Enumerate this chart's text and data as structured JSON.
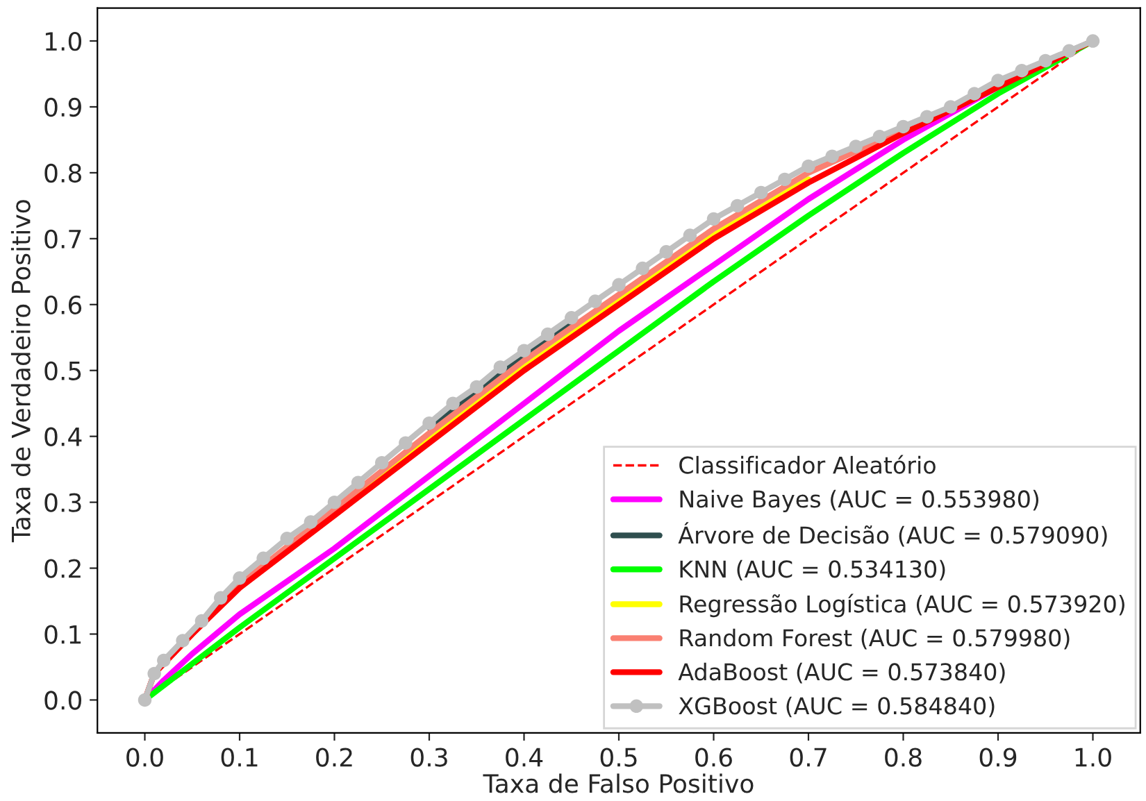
{
  "chart_data": {
    "type": "line",
    "xlabel": "Taxa de Falso Positivo",
    "ylabel": "Taxa de Verdadeiro Positivo",
    "xlim": [
      -0.05,
      1.05
    ],
    "ylim": [
      -0.05,
      1.05
    ],
    "xticks": [
      {
        "value": 0,
        "label": "0.0"
      },
      0.1,
      0.2,
      0.3,
      0.4,
      0.5,
      0.6,
      0.7,
      0.8,
      0.9,
      {
        "value": 1,
        "label": "1.0"
      }
    ],
    "yticks": [
      {
        "value": 0,
        "label": "0.0"
      },
      0.1,
      0.2,
      0.3,
      0.4,
      0.5,
      0.6,
      0.7,
      0.8,
      0.9,
      {
        "value": 1,
        "label": "1.0"
      }
    ],
    "grid": false,
    "legend": "bottom right",
    "series": [
      {
        "name": "Classificador Aleatório",
        "color": "#ff0000",
        "line_style": "dashed",
        "marker": "none",
        "x": [
          0,
          1
        ],
        "values": [
          0,
          1
        ]
      },
      {
        "name": "Naive Bayes (AUC = 0.553980)",
        "color": "#ff00ff",
        "line_style": "solid",
        "marker": "none",
        "x": [
          0,
          0.02,
          0.05,
          0.1,
          0.2,
          0.3,
          0.4,
          0.5,
          0.6,
          0.7,
          0.8,
          0.9,
          1
        ],
        "values": [
          0,
          0.03,
          0.07,
          0.13,
          0.23,
          0.34,
          0.45,
          0.56,
          0.66,
          0.76,
          0.85,
          0.93,
          1
        ]
      },
      {
        "name": "Árvore de Decisão (AUC = 0.579090)",
        "color": "#2f4f4f",
        "line_style": "solid",
        "marker": "none",
        "x": [
          0.3,
          0.35,
          0.4,
          0.45
        ],
        "values": [
          0.413,
          0.468,
          0.523,
          0.573
        ]
      },
      {
        "name": "KNN (AUC = 0.534130)",
        "color": "#00ff00",
        "line_style": "solid",
        "marker": "none",
        "x": [
          0,
          0.1,
          0.2,
          0.3,
          0.4,
          0.5,
          0.6,
          0.7,
          0.8,
          0.9,
          1
        ],
        "values": [
          0,
          0.11,
          0.215,
          0.32,
          0.425,
          0.53,
          0.635,
          0.735,
          0.83,
          0.92,
          1
        ]
      },
      {
        "name": "Regressão Logística (AUC = 0.573920)",
        "color": "#ffff00",
        "line_style": "solid",
        "marker": "none",
        "x": [
          0.2,
          0.3,
          0.4,
          0.5,
          0.6,
          0.7
        ],
        "values": [
          0.285,
          0.395,
          0.505,
          0.605,
          0.705,
          0.79
        ]
      },
      {
        "name": "Random Forest (AUC = 0.579980)",
        "color": "#fa8072",
        "line_style": "solid",
        "marker": "none",
        "x": [
          0,
          0.01,
          0.05,
          0.1,
          0.2,
          0.3,
          0.4,
          0.5,
          0.6,
          0.7,
          0.8,
          0.9,
          1
        ],
        "values": [
          0,
          0.04,
          0.1,
          0.175,
          0.29,
          0.405,
          0.515,
          0.615,
          0.715,
          0.8,
          0.865,
          0.935,
          1
        ]
      },
      {
        "name": "AdaBoost (AUC = 0.573840)",
        "color": "#ff0000",
        "line_style": "solid",
        "marker": "none",
        "x": [
          0,
          0.01,
          0.05,
          0.1,
          0.2,
          0.3,
          0.4,
          0.5,
          0.6,
          0.7,
          0.8,
          0.9,
          1
        ],
        "values": [
          0,
          0.04,
          0.1,
          0.17,
          0.28,
          0.39,
          0.5,
          0.6,
          0.7,
          0.785,
          0.86,
          0.93,
          1
        ]
      },
      {
        "name": "XGBoost (AUC = 0.584840)",
        "color": "#c0c0c0",
        "line_style": "solid",
        "marker": "circle",
        "x": [
          0,
          0.01,
          0.02,
          0.04,
          0.06,
          0.08,
          0.1,
          0.125,
          0.15,
          0.175,
          0.2,
          0.225,
          0.25,
          0.275,
          0.3,
          0.325,
          0.35,
          0.375,
          0.4,
          0.425,
          0.45,
          0.475,
          0.5,
          0.525,
          0.55,
          0.575,
          0.6,
          0.625,
          0.65,
          0.675,
          0.7,
          0.725,
          0.75,
          0.775,
          0.8,
          0.825,
          0.85,
          0.875,
          0.9,
          0.925,
          0.95,
          0.975,
          1
        ],
        "values": [
          0,
          0.04,
          0.06,
          0.09,
          0.12,
          0.155,
          0.185,
          0.215,
          0.245,
          0.27,
          0.3,
          0.33,
          0.36,
          0.39,
          0.42,
          0.45,
          0.475,
          0.505,
          0.53,
          0.555,
          0.58,
          0.605,
          0.63,
          0.655,
          0.68,
          0.705,
          0.73,
          0.75,
          0.77,
          0.79,
          0.81,
          0.825,
          0.84,
          0.855,
          0.87,
          0.885,
          0.9,
          0.92,
          0.94,
          0.955,
          0.97,
          0.985,
          1
        ]
      }
    ]
  }
}
